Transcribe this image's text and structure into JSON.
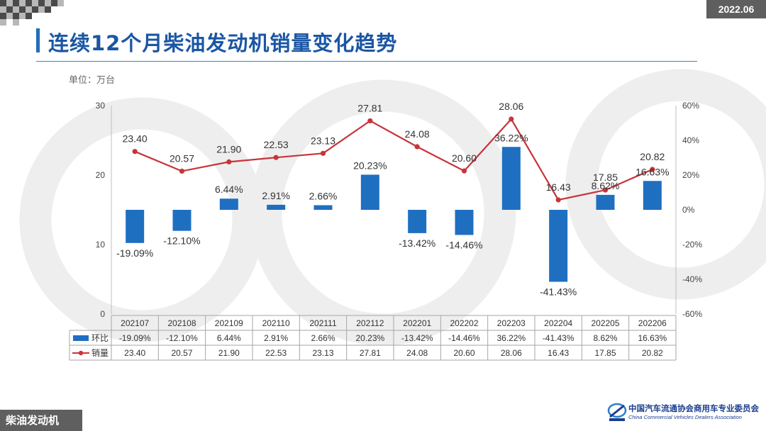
{
  "header": {
    "date_badge": "2022.06",
    "title": "连续12个月柴油发动机销量变化趋势",
    "unit": "单位：万台"
  },
  "footer": {
    "section_tag": "柴油发动机",
    "logo_cn": "中国汽车流通协会商用车专业委员会",
    "logo_en": "China Commercial Vehicles Dealers Association"
  },
  "colors": {
    "bar": "#1f6fc1",
    "line": "#c8343a",
    "title": "#1b56a4"
  },
  "chart_data": {
    "type": "bar+line",
    "categories": [
      "202107",
      "202108",
      "202109",
      "202110",
      "202111",
      "202112",
      "202201",
      "202202",
      "202203",
      "202204",
      "202205",
      "202206"
    ],
    "series": [
      {
        "name": "环比",
        "type": "bar",
        "axis": "right",
        "values": [
          -19.09,
          -12.1,
          6.44,
          2.91,
          2.66,
          20.23,
          -13.42,
          -14.46,
          36.22,
          -41.43,
          8.62,
          16.63
        ],
        "labels": [
          "-19.09%",
          "-12.10%",
          "6.44%",
          "2.91%",
          "2.66%",
          "20.23%",
          "-13.42%",
          "-14.46%",
          "36.22%",
          "-41.43%",
          "8.62%",
          "16.63%"
        ]
      },
      {
        "name": "销量",
        "type": "line",
        "axis": "left",
        "values": [
          23.4,
          20.57,
          21.9,
          22.53,
          23.13,
          27.81,
          24.08,
          20.6,
          28.06,
          16.43,
          17.85,
          20.82
        ],
        "labels": [
          "23.40",
          "20.57",
          "21.90",
          "22.53",
          "23.13",
          "27.81",
          "24.08",
          "20.60",
          "28.06",
          "16.43",
          "17.85",
          "20.82"
        ]
      }
    ],
    "y_left": {
      "ylim": [
        0,
        30
      ],
      "ticks": [
        "0",
        "10",
        "20",
        "30"
      ]
    },
    "y_right": {
      "ylim": [
        -60,
        60
      ],
      "ticks": [
        "-60%",
        "-40%",
        "-20%",
        "0%",
        "20%",
        "40%",
        "60%"
      ]
    },
    "data_table": true,
    "grid": false
  }
}
